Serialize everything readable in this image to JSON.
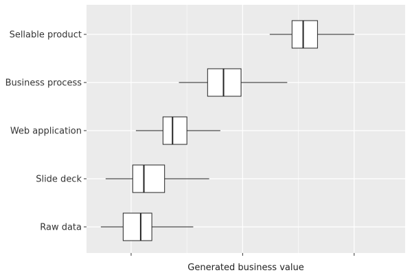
{
  "chart_data": {
    "type": "boxplot",
    "title": "",
    "xlabel": "Generated business value",
    "ylabel": "",
    "show_x_tick_labels": false,
    "grid": true,
    "colors": {
      "panel": "#ebebeb",
      "grid": "#ffffff",
      "box_fill": "#ffffff",
      "box_stroke": "#222222",
      "text": "#333333"
    },
    "xlim": [
      0,
      100
    ],
    "x_gridlines": [
      14,
      49,
      84
    ],
    "x_minor_gridlines": [
      31.5,
      66.5
    ],
    "categories": [
      "Sellable product",
      "Business process",
      "Web application",
      "Slide deck",
      "Raw data"
    ],
    "boxes": [
      {
        "category": "Sellable product",
        "whisker_low": 57.5,
        "q1": 64.5,
        "median": 68,
        "q3": 72.5,
        "whisker_high": 84
      },
      {
        "category": "Business process",
        "whisker_low": 29,
        "q1": 38,
        "median": 43,
        "q3": 48.5,
        "whisker_high": 63
      },
      {
        "category": "Web application",
        "whisker_low": 15.5,
        "q1": 24,
        "median": 27,
        "q3": 31.5,
        "whisker_high": 42
      },
      {
        "category": "Slide deck",
        "whisker_low": 6,
        "q1": 14.5,
        "median": 18,
        "q3": 24.5,
        "whisker_high": 38.5
      },
      {
        "category": "Raw data",
        "whisker_low": 4.5,
        "q1": 11.5,
        "median": 17,
        "q3": 20.5,
        "whisker_high": 33.5
      }
    ]
  }
}
